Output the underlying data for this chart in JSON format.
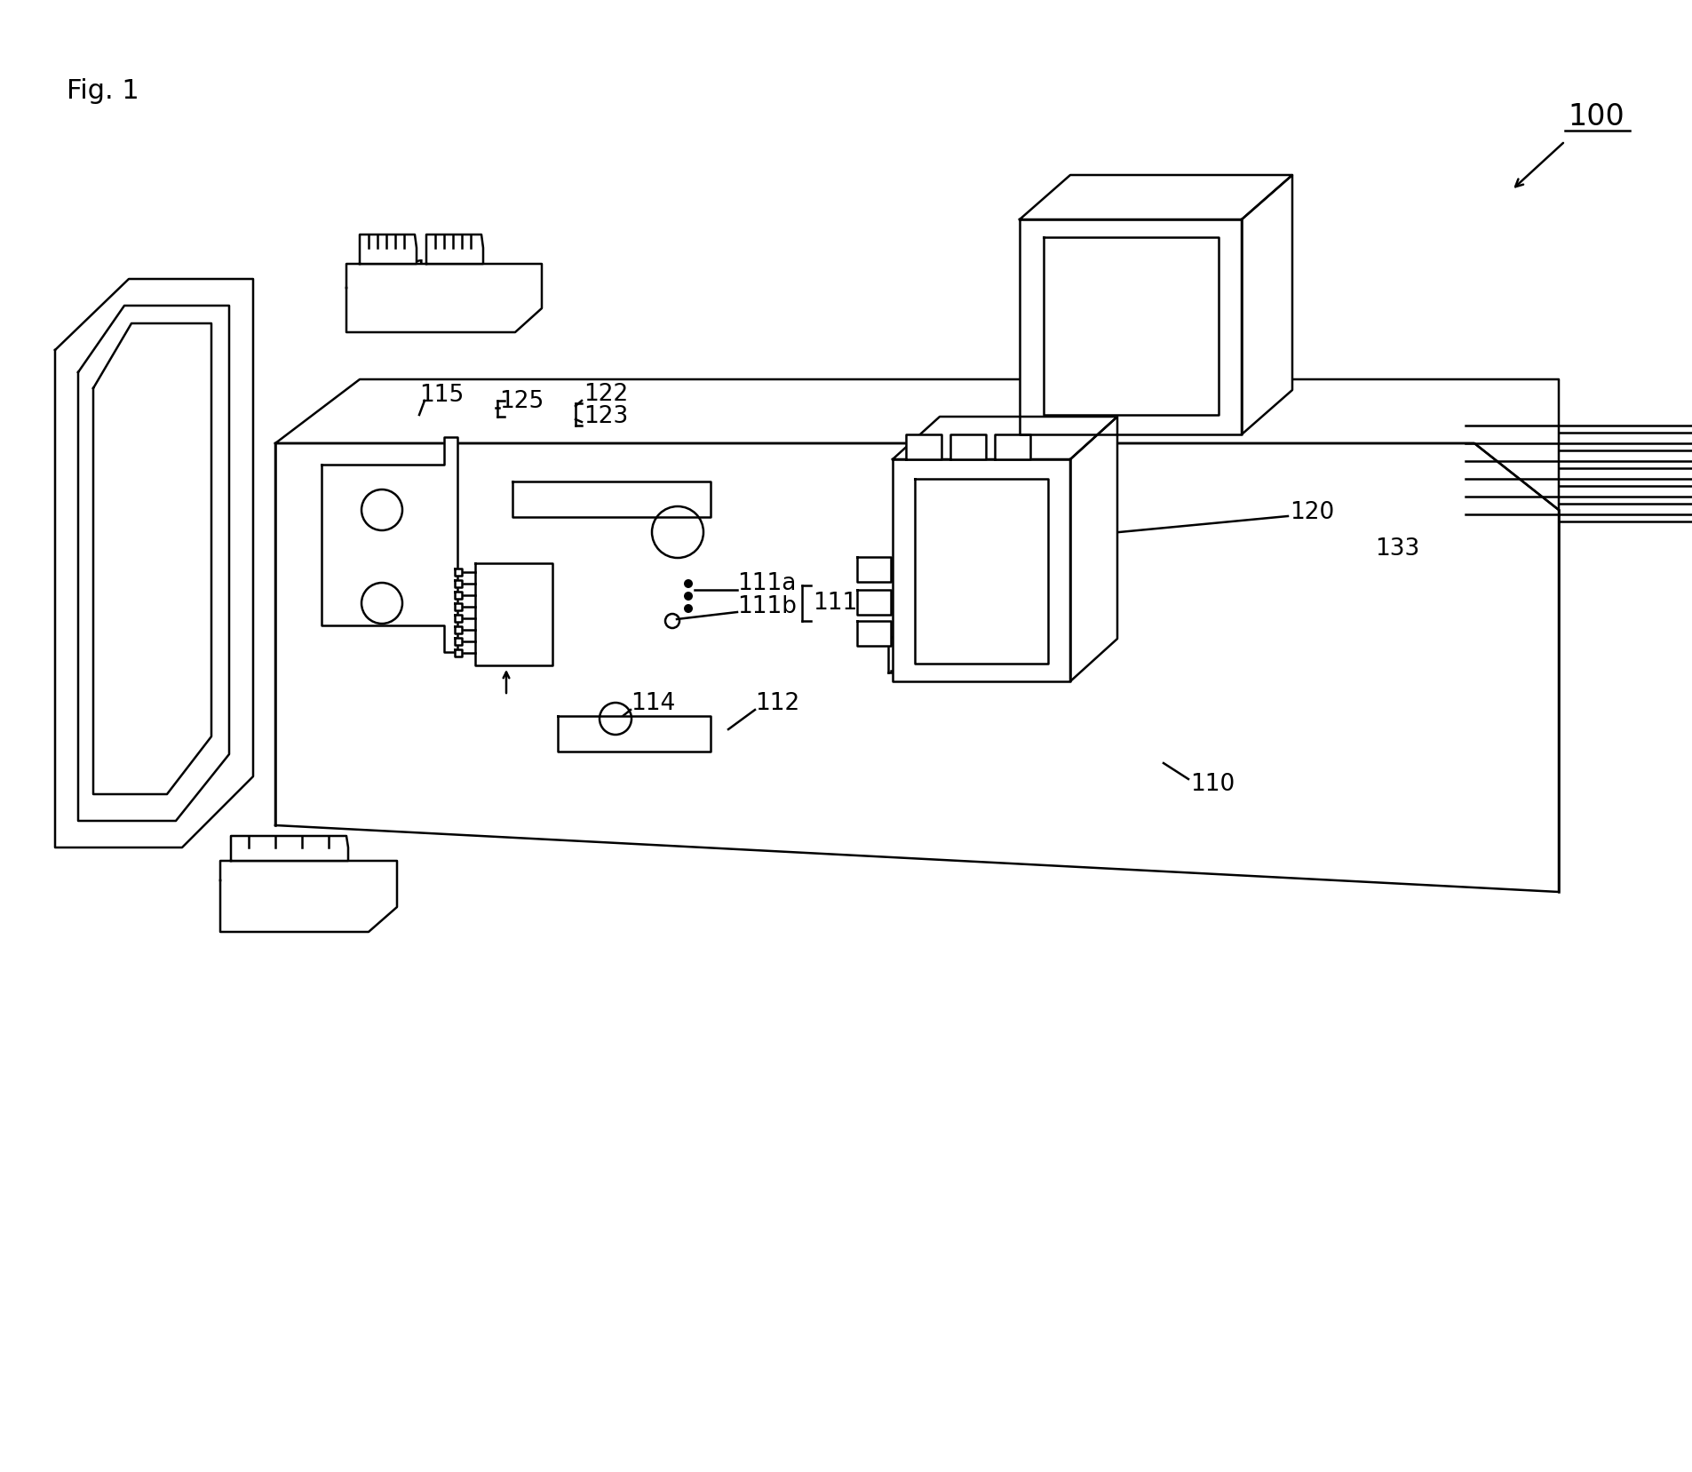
{
  "background_color": "#ffffff",
  "line_color": "#000000",
  "fig_label": "Fig. 1",
  "lw": 1.8,
  "font_size": 19,
  "fig_label_size": 22,
  "ref100_size": 24
}
